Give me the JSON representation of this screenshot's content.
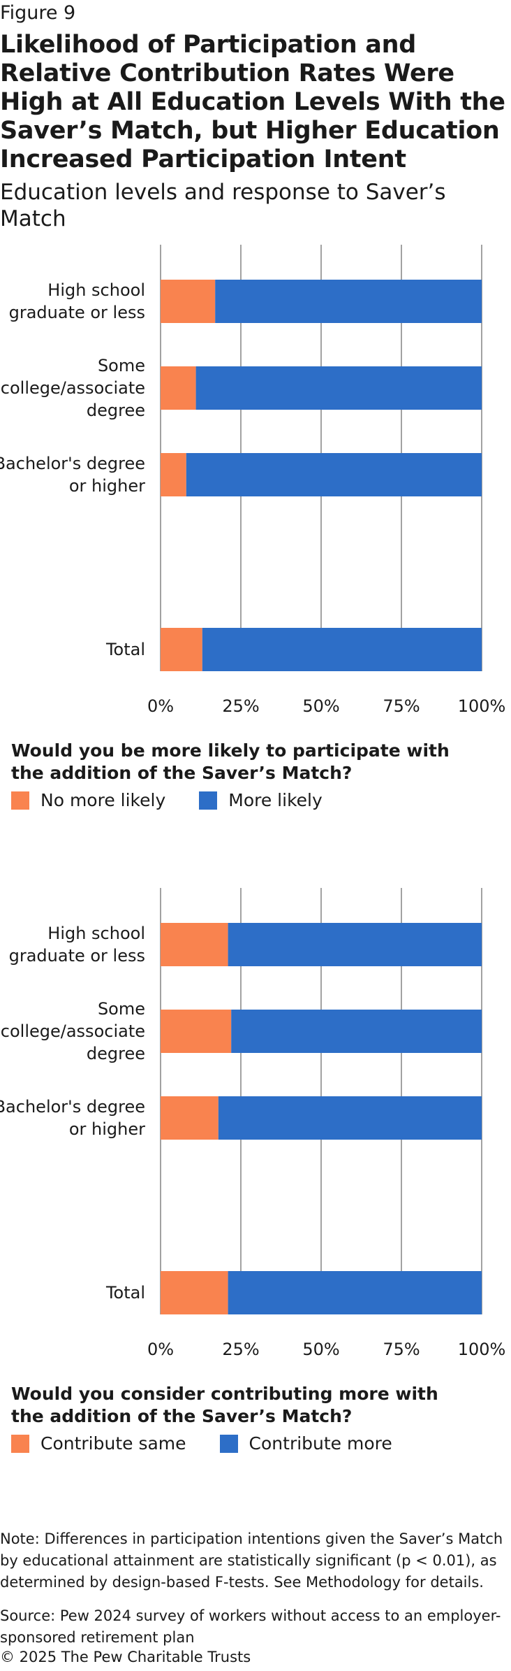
{
  "figure_label": "Figure 9",
  "title": "Likelihood of Participation and Relative Contribution Rates Were High at All Education Levels With the Saver’s Match, but Higher Education Increased Participation Intent",
  "subtitle": "Education levels and response to Saver’s Match",
  "colors": {
    "orange": "#f9834f",
    "blue": "#2d6ec7",
    "grid": "#8a8a8a"
  },
  "chart_data": [
    {
      "type": "bar",
      "orientation": "horizontal",
      "stacked": true,
      "categories": [
        [
          "High school",
          "graduate or less"
        ],
        [
          "Some",
          "college/associate",
          "degree"
        ],
        [
          "Bachelor's degree",
          "or higher"
        ],
        [
          "Total"
        ]
      ],
      "category_groups": [
        0,
        0,
        0,
        1
      ],
      "series": [
        {
          "name": "No more likely",
          "values": [
            17,
            11,
            8,
            13
          ],
          "color": "#f9834f"
        },
        {
          "name": "More likely",
          "values": [
            83,
            89,
            92,
            87
          ],
          "color": "#2d6ec7"
        }
      ],
      "xlim": [
        0,
        100
      ],
      "xticks": [
        0,
        25,
        50,
        75,
        100
      ],
      "xtick_labels": [
        "0%",
        "25%",
        "50%",
        "75%",
        "100%"
      ],
      "grid": true,
      "legend_position": "bottom-left",
      "legend_title": "Would you be more likely to participate with the addition of the Saver’s Match?"
    },
    {
      "type": "bar",
      "orientation": "horizontal",
      "stacked": true,
      "categories": [
        [
          "High school",
          "graduate or less"
        ],
        [
          "Some",
          "college/associate",
          "degree"
        ],
        [
          "Bachelor's degree",
          "or higher"
        ],
        [
          "Total"
        ]
      ],
      "category_groups": [
        0,
        0,
        0,
        1
      ],
      "series": [
        {
          "name": "Contribute same",
          "values": [
            21,
            22,
            18,
            21
          ],
          "color": "#f9834f"
        },
        {
          "name": "Contribute more",
          "values": [
            79,
            78,
            82,
            79
          ],
          "color": "#2d6ec7"
        }
      ],
      "xlim": [
        0,
        100
      ],
      "xticks": [
        0,
        25,
        50,
        75,
        100
      ],
      "xtick_labels": [
        "0%",
        "25%",
        "50%",
        "75%",
        "100%"
      ],
      "grid": true,
      "legend_position": "bottom-left",
      "legend_title": "Would you consider contributing more with the addition of the Saver’s Match?"
    }
  ],
  "note": "Note: Differences in participation intentions given the Saver’s Match by educational attainment are statistically significant (p < 0.01), as determined by design-based F-tests. See Methodology for details.",
  "source": "Source: Pew 2024 survey of workers without access to an employer-sponsored retirement plan",
  "copyright": "© 2025 The Pew Charitable Trusts"
}
